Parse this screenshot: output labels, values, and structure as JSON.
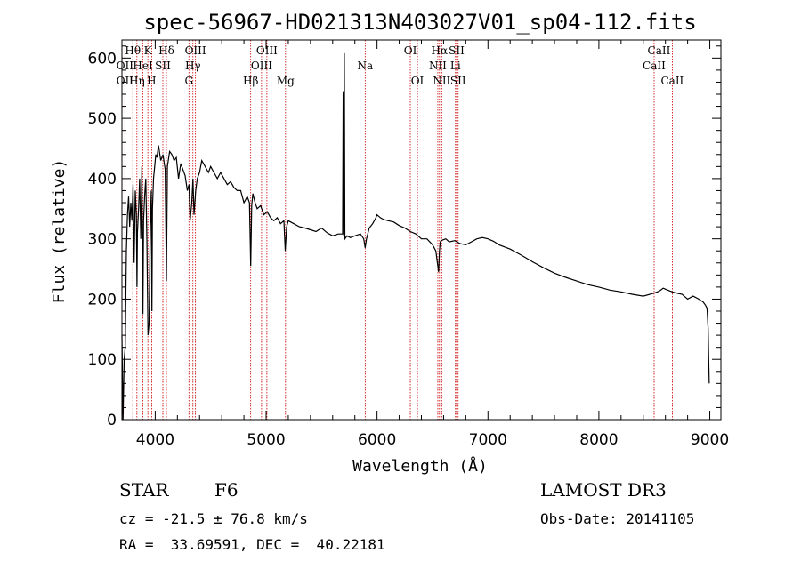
{
  "chart_data": {
    "type": "line",
    "title": "spec-56967-HD021313N403027V01_sp04-112.fits",
    "xlabel": "Wavelength (Å)",
    "ylabel": "Flux (relative)",
    "xlim": [
      3700,
      9100
    ],
    "ylim": [
      0,
      630
    ],
    "xticks": [
      4000,
      5000,
      6000,
      7000,
      8000,
      9000
    ],
    "yticks": [
      0,
      100,
      200,
      300,
      400,
      500,
      600
    ],
    "series": [
      {
        "name": "flux",
        "x": [
          3700,
          3710,
          3720,
          3730,
          3740,
          3750,
          3760,
          3770,
          3780,
          3790,
          3800,
          3810,
          3820,
          3830,
          3836,
          3840,
          3850,
          3860,
          3870,
          3880,
          3889,
          3895,
          3905,
          3915,
          3925,
          3935,
          3945,
          3955,
          3965,
          3970,
          3975,
          3985,
          3995,
          4005,
          4015,
          4030,
          4050,
          4070,
          4090,
          4101,
          4110,
          4130,
          4150,
          4170,
          4190,
          4210,
          4230,
          4250,
          4270,
          4290,
          4305,
          4315,
          4330,
          4340,
          4350,
          4365,
          4380,
          4400,
          4420,
          4450,
          4480,
          4500,
          4530,
          4560,
          4590,
          4620,
          4650,
          4680,
          4710,
          4740,
          4770,
          4800,
          4830,
          4850,
          4861,
          4870,
          4880,
          4900,
          4920,
          4950,
          4980,
          5010,
          5040,
          5070,
          5100,
          5130,
          5160,
          5172,
          5185,
          5200,
          5250,
          5300,
          5350,
          5400,
          5450,
          5500,
          5550,
          5600,
          5650,
          5690,
          5695,
          5700,
          5705,
          5710,
          5730,
          5760,
          5800,
          5850,
          5880,
          5893,
          5905,
          5930,
          5960,
          5990,
          6000,
          6030,
          6060,
          6100,
          6150,
          6200,
          6250,
          6300,
          6350,
          6400,
          6450,
          6500,
          6530,
          6555,
          6563,
          6570,
          6590,
          6620,
          6650,
          6700,
          6750,
          6800,
          6850,
          6900,
          6950,
          7000,
          7050,
          7100,
          7200,
          7300,
          7400,
          7500,
          7600,
          7700,
          7800,
          7900,
          8000,
          8100,
          8200,
          8300,
          8400,
          8498,
          8542,
          8580,
          8620,
          8662,
          8700,
          8750,
          8800,
          8850,
          8900,
          8940,
          8960,
          8975,
          8985,
          8990,
          8995
        ],
        "y": [
          140,
          0,
          100,
          120,
          280,
          340,
          370,
          320,
          360,
          330,
          390,
          260,
          380,
          340,
          220,
          310,
          350,
          400,
          300,
          420,
          175,
          330,
          370,
          400,
          300,
          140,
          160,
          320,
          380,
          180,
          350,
          400,
          420,
          440,
          435,
          455,
          430,
          440,
          415,
          230,
          420,
          445,
          440,
          430,
          435,
          400,
          425,
          415,
          405,
          380,
          390,
          330,
          360,
          400,
          340,
          380,
          400,
          410,
          430,
          420,
          410,
          420,
          410,
          400,
          410,
          400,
          390,
          395,
          385,
          380,
          380,
          360,
          370,
          360,
          255,
          355,
          375,
          360,
          350,
          355,
          340,
          345,
          335,
          330,
          335,
          325,
          330,
          280,
          320,
          330,
          325,
          320,
          318,
          315,
          312,
          318,
          310,
          305,
          308,
          308,
          545,
          305,
          608,
          300,
          305,
          302,
          305,
          308,
          300,
          285,
          300,
          318,
          325,
          335,
          340,
          335,
          332,
          330,
          328,
          322,
          318,
          312,
          308,
          300,
          300,
          290,
          280,
          245,
          280,
          295,
          298,
          300,
          295,
          297,
          292,
          290,
          295,
          300,
          302,
          300,
          296,
          290,
          283,
          273,
          262,
          252,
          243,
          236,
          230,
          224,
          220,
          215,
          212,
          208,
          205,
          210,
          213,
          218,
          215,
          212,
          210,
          208,
          200,
          205,
          200,
          195,
          190,
          185,
          150,
          100,
          60
        ]
      }
    ],
    "spectral_lines": [
      {
        "label": "Hθ",
        "x": 3798,
        "row": 1
      },
      {
        "label": "OII",
        "x": 3727,
        "row": 2
      },
      {
        "label": "OII",
        "x": 3727,
        "row": 3
      },
      {
        "label": "Hη",
        "x": 3835,
        "row": 3
      },
      {
        "label": "K",
        "x": 3934,
        "row": 1
      },
      {
        "label": "HeI",
        "x": 3889,
        "row": 2
      },
      {
        "label": "SII",
        "x": 4069,
        "row": 2
      },
      {
        "label": "H",
        "x": 3968,
        "row": 3
      },
      {
        "label": "Hδ",
        "x": 4101,
        "row": 1
      },
      {
        "label": "OIII",
        "x": 4363,
        "row": 1
      },
      {
        "label": "Hγ",
        "x": 4340,
        "row": 2
      },
      {
        "label": "G",
        "x": 4304,
        "row": 3
      },
      {
        "label": "OIII",
        "x": 5007,
        "row": 1
      },
      {
        "label": "OIII",
        "x": 4959,
        "row": 2
      },
      {
        "label": "Hβ",
        "x": 4861,
        "row": 3
      },
      {
        "label": "Mg",
        "x": 5175,
        "row": 3
      },
      {
        "label": "Na",
        "x": 5893,
        "row": 2
      },
      {
        "label": "OI",
        "x": 6300,
        "row": 1
      },
      {
        "label": "OI",
        "x": 6364,
        "row": 3
      },
      {
        "label": "Hα",
        "x": 6563,
        "row": 1
      },
      {
        "label": "NII",
        "x": 6548,
        "row": 2
      },
      {
        "label": "NII",
        "x": 6583,
        "row": 3
      },
      {
        "label": "SII",
        "x": 6717,
        "row": 1
      },
      {
        "label": "Li",
        "x": 6707,
        "row": 2
      },
      {
        "label": "SII",
        "x": 6731,
        "row": 3
      },
      {
        "label": "CaII",
        "x": 8542,
        "row": 1
      },
      {
        "label": "CaII",
        "x": 8498,
        "row": 2
      },
      {
        "label": "CaII",
        "x": 8662,
        "row": 3
      }
    ]
  },
  "info": {
    "class_label": "STAR",
    "subclass": "F6",
    "redshift": "cz = -21.5 ± 76.8 km/s",
    "coords": "RA =  33.69591, DEC =  40.22181",
    "survey": "LAMOST DR3",
    "obs_date": "Obs-Date: 20141105"
  },
  "colors": {
    "spectrum": "#000000",
    "line_marker": "#cc0000",
    "frame": "#000000"
  }
}
